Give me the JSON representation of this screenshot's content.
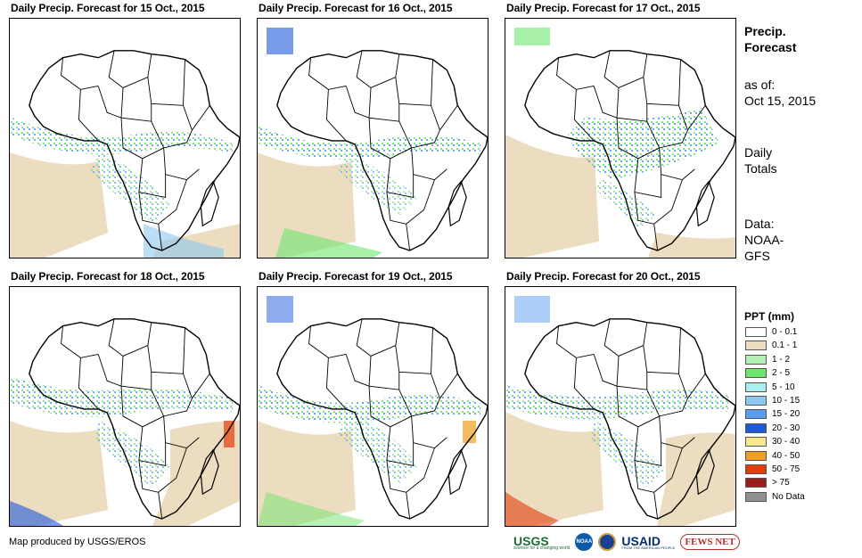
{
  "panels": [
    {
      "title": "Daily Precip. Forecast for 15 Oct., 2015"
    },
    {
      "title": "Daily Precip. Forecast for 16 Oct., 2015"
    },
    {
      "title": "Daily Precip. Forecast for 17 Oct., 2015"
    },
    {
      "title": "Daily Precip. Forecast for 18 Oct., 2015"
    },
    {
      "title": "Daily Precip. Forecast for 19 Oct., 2015"
    },
    {
      "title": "Daily Precip. Forecast for 20 Oct., 2015"
    }
  ],
  "sidebar": {
    "heading_line1": "Precip.",
    "heading_line2": "Forecast",
    "as_of_label": "as of:",
    "as_of_date": "Oct 15, 2015",
    "totals_line1": "Daily",
    "totals_line2": "Totals",
    "data_line1": "Data:",
    "data_line2": "NOAA-",
    "data_line3": "GFS"
  },
  "legend": {
    "title": "PPT (mm)",
    "items": [
      {
        "label": "0 - 0.1",
        "color": "#ffffff"
      },
      {
        "label": "0.1 - 1",
        "color": "#ecdcc0"
      },
      {
        "label": "1 - 2",
        "color": "#b4f0b4"
      },
      {
        "label": "2 - 5",
        "color": "#6ee66e"
      },
      {
        "label": "5 - 10",
        "color": "#aaeeee"
      },
      {
        "label": "10 - 15",
        "color": "#8cc8f0"
      },
      {
        "label": "15 - 20",
        "color": "#5a9ef0"
      },
      {
        "label": "20 - 30",
        "color": "#1e5adc"
      },
      {
        "label": "30 - 40",
        "color": "#f8e88c"
      },
      {
        "label": "40 - 50",
        "color": "#f0a01e"
      },
      {
        "label": "50 - 75",
        "color": "#e63c0a"
      },
      {
        "label": "> 75",
        "color": "#9a1e1e"
      },
      {
        "label": "No Data",
        "color": "#909090"
      }
    ]
  },
  "footer": {
    "credit": "Map produced by USGS/EROS",
    "logo_usgs": "USGS",
    "logo_usgs_tagline": "science for a changing world",
    "logo_noaa": "NOAA",
    "logo_usaid": "USAID",
    "logo_usaid_tagline": "FROM THE AMERICAN PEOPLE",
    "logo_fews": "FEWS NET"
  }
}
